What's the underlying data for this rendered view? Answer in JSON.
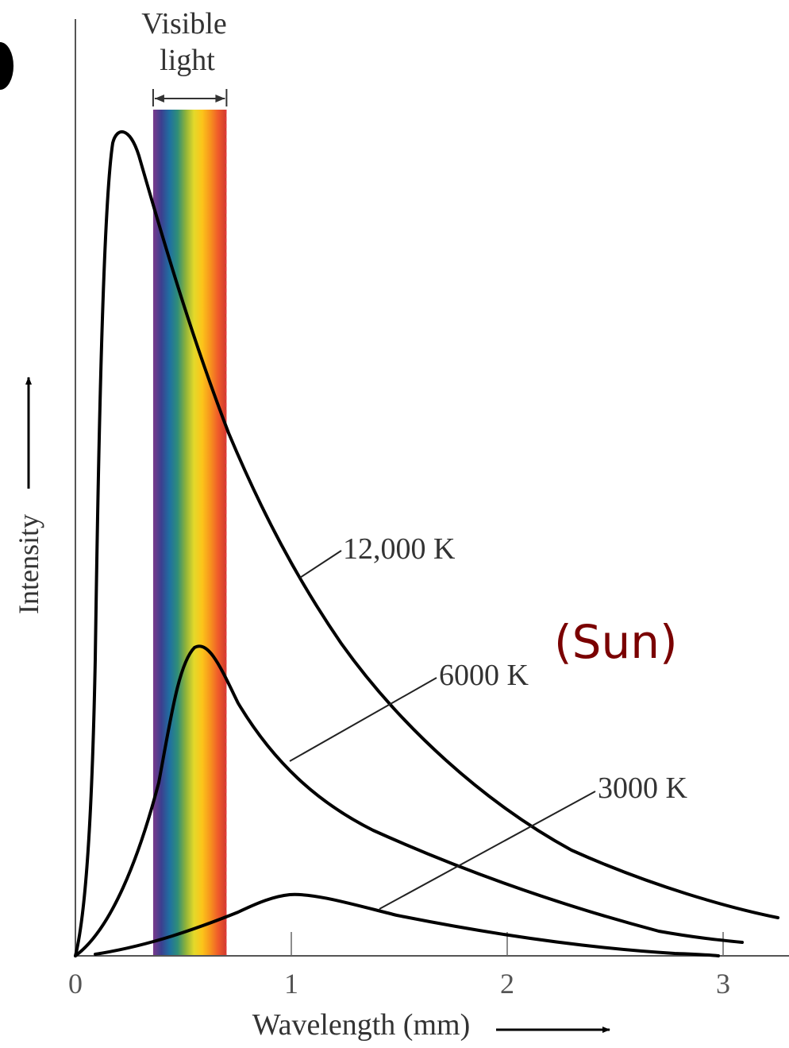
{
  "chart_data": {
    "type": "line",
    "xlabel": "Wavelength (mm)",
    "ylabel": "Intensity",
    "xlim": [
      0,
      3.25
    ],
    "x_ticks": [
      {
        "value": 0,
        "label": "0"
      },
      {
        "value": 1,
        "label": "1"
      },
      {
        "value": 2,
        "label": "2"
      },
      {
        "value": 3,
        "label": "3"
      }
    ],
    "visible_band": {
      "label_line1": "Visible",
      "label_line2": "light",
      "x_range": [
        0.36,
        0.7
      ],
      "colors": [
        "#7a3a8c",
        "#3c3f8f",
        "#1f6fa2",
        "#2f8e78",
        "#8fb23a",
        "#e3d92a",
        "#fcc51a",
        "#f7941d",
        "#ef5a2a",
        "#cf3a2e"
      ]
    },
    "series": [
      {
        "name": "12,000 K",
        "temperature": 12000,
        "peak_x": 0.22
      },
      {
        "name": "6000 K",
        "temperature": 6000,
        "peak_x": 0.55
      },
      {
        "name": "3000 K",
        "temperature": 3000,
        "peak_x": 0.97
      }
    ],
    "annotation": {
      "text": "(Sun)",
      "color": "#7a0000"
    },
    "curve_color": "#000000",
    "axis_color": "#555555"
  }
}
